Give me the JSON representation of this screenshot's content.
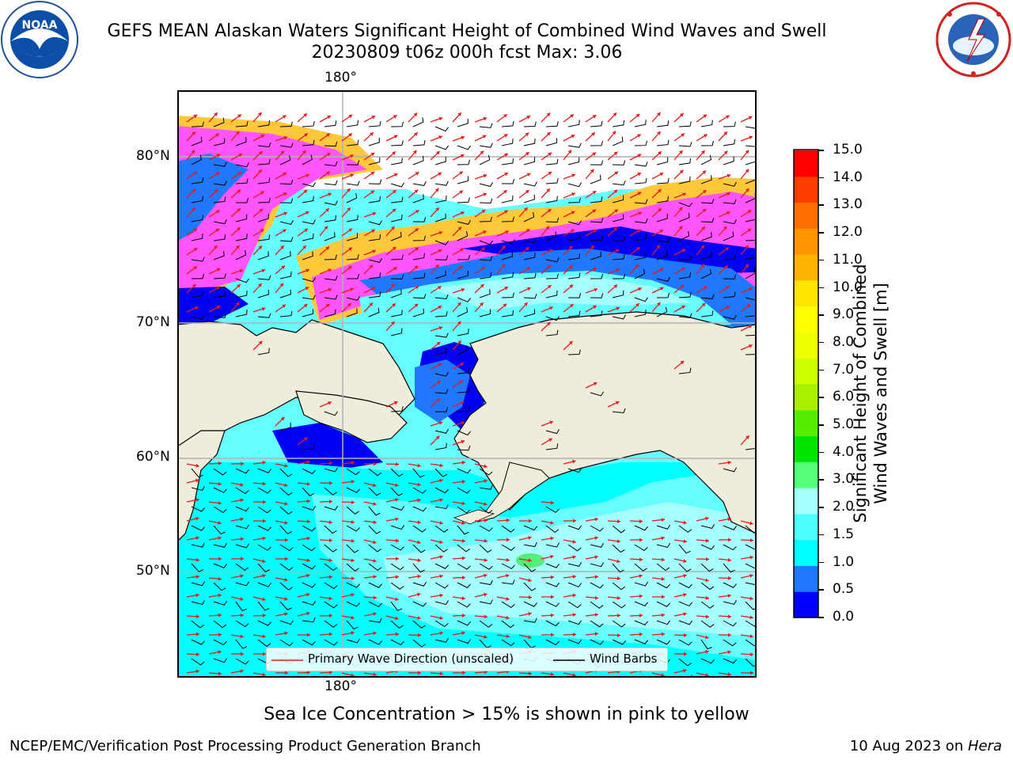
{
  "header": {
    "title_line1": "GEFS MEAN Alaskan Waters Significant Height of Combined Wind Waves and Swell",
    "title_line2": "20230809 t06z 000h fcst   Max: 3.06"
  },
  "logos": {
    "noaa_text": "NOAA",
    "noaa_ring_text": "NATIONAL OCEANIC AND ATMOSPHERIC ADMINISTRATION · U.S. DEPARTMENT OF COMMERCE",
    "nws_ring_text": "NATIONAL WEATHER SERVICE"
  },
  "map": {
    "lon_label_top": "180°",
    "lon_label_bottom": "180°",
    "lat_labels": [
      "80°N",
      "70°N",
      "60°N",
      "50°N"
    ],
    "legend": {
      "wave_label": "Primary Wave Direction (unscaled)",
      "wind_label": "Wind Barbs",
      "wave_color": "#e41a1c",
      "wind_color": "#000000"
    },
    "colors": {
      "land": "#efecdc",
      "ice_pink": "#ff55ff",
      "ice_yellow": "#ffc83a",
      "deep_blue": "#0000f5",
      "mid_blue": "#1f78ff",
      "cyan": "#00ffff",
      "light_cyan": "#66ffff",
      "pale_cyan": "#a6ffff",
      "green_patch": "#55ee77"
    }
  },
  "colorbar": {
    "label_line1": "Significant Height of Combined",
    "label_line2": "Wind Waves and Swell [m]",
    "ticks": [
      "15.0",
      "14.0",
      "13.0",
      "12.0",
      "11.0",
      "10.0",
      "9.0",
      "8.0",
      "7.0",
      "6.0",
      "5.0",
      "4.0",
      "3.0",
      "2.0",
      "1.5",
      "1.0",
      "0.5",
      "0.0"
    ],
    "colors_bottom_to_top": [
      "#0000ff",
      "#1f78ff",
      "#00ffff",
      "#4dffff",
      "#a6ffff",
      "#55ff77",
      "#00e600",
      "#55ee00",
      "#aaee00",
      "#ccff00",
      "#eeff00",
      "#ffff00",
      "#ffe600",
      "#ffb400",
      "#ff9600",
      "#ff6e00",
      "#ff3c00",
      "#ff0000"
    ]
  },
  "notes": {
    "sea_ice": "Sea Ice Concentration > 15% is shown in pink to yellow"
  },
  "footer": {
    "left": "NCEP/EMC/Verification Post Processing Product Generation Branch",
    "right_date": "10 Aug 2023 on ",
    "right_host": "Hera"
  }
}
